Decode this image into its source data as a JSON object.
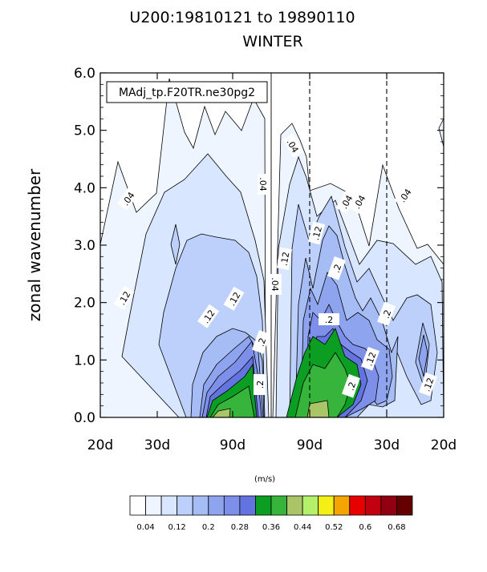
{
  "chart_data": {
    "type": "contour",
    "title": "U200:19810121 to 19890110",
    "subtitle": "WINTER",
    "ylabel": "zonal wavenumber",
    "xlabel": "",
    "ylim": [
      0,
      6
    ],
    "y_ticks": [
      "0.0",
      "1.0",
      "2.0",
      "3.0",
      "4.0",
      "5.0",
      "6.0"
    ],
    "x_ticks": [
      "20d",
      "30d",
      "90d",
      "90d",
      "30d",
      "20d"
    ],
    "legend": "MAdj_tp.F20TR.ne30pg2",
    "legend_position": "top-left",
    "units": "(m/s)",
    "colorbar_labels": [
      "0.04",
      "0.12",
      "0.2",
      "0.28",
      "0.36",
      "0.44",
      "0.52",
      "0.6",
      "0.68"
    ],
    "colorbar_colors": [
      "#ffffff",
      "#eef5ff",
      "#d8e6ff",
      "#bcd0fb",
      "#a6bcf5",
      "#8fa4ee",
      "#7e8fea",
      "#6373e0",
      "#0b9e22",
      "#37b43b",
      "#a9c567",
      "#b4f06a",
      "#f4ef14",
      "#f5a500",
      "#e80000",
      "#c10010",
      "#900010",
      "#640000",
      "#000000"
    ],
    "contour_labels": [
      ".04",
      ".04",
      ".04",
      ".04",
      ".04",
      ".04",
      ".04",
      ".12",
      ".12",
      ".12",
      ".12",
      ".12",
      ".12",
      ".12",
      ".2",
      ".2",
      ".2",
      ".2",
      ".2",
      ".2"
    ]
  }
}
